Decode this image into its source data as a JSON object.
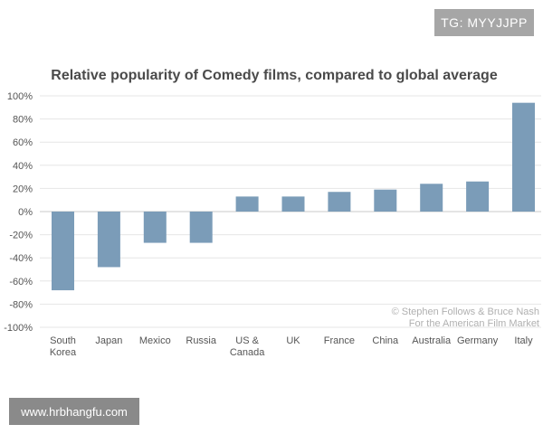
{
  "watermarks": {
    "top": "TG: MYYJJPP",
    "bottom": "www.hrbhangfu.com"
  },
  "credit": {
    "line1": "© Stephen Follows & Bruce Nash",
    "line2": "For the American Film Market"
  },
  "colors": {
    "bar": "#7b9cb8",
    "grid": "#e6e6e6",
    "zero_line": "#c8c8c8"
  },
  "chart_data": {
    "type": "bar",
    "title": "Relative popularity of Comedy films, compared to global average",
    "xlabel": "",
    "ylabel": "",
    "ylim": [
      -100,
      100
    ],
    "yticks": [
      100,
      80,
      60,
      40,
      20,
      0,
      -20,
      -40,
      -60,
      -80,
      -100
    ],
    "ytick_labels": [
      "100%",
      "80%",
      "60%",
      "40%",
      "20%",
      "0%",
      "-20%",
      "-40%",
      "-60%",
      "-80%",
      "-100%"
    ],
    "categories": [
      [
        "South",
        "Korea"
      ],
      [
        "Japan"
      ],
      [
        "Mexico"
      ],
      [
        "Russia"
      ],
      [
        "US &",
        "Canada"
      ],
      [
        "UK"
      ],
      [
        "France"
      ],
      [
        "China"
      ],
      [
        "Australia"
      ],
      [
        "Germany"
      ],
      [
        "Italy"
      ]
    ],
    "values": [
      -68,
      -48,
      -27,
      -27,
      13,
      13,
      17,
      19,
      24,
      26,
      94
    ],
    "grid": true,
    "legend": "none"
  }
}
